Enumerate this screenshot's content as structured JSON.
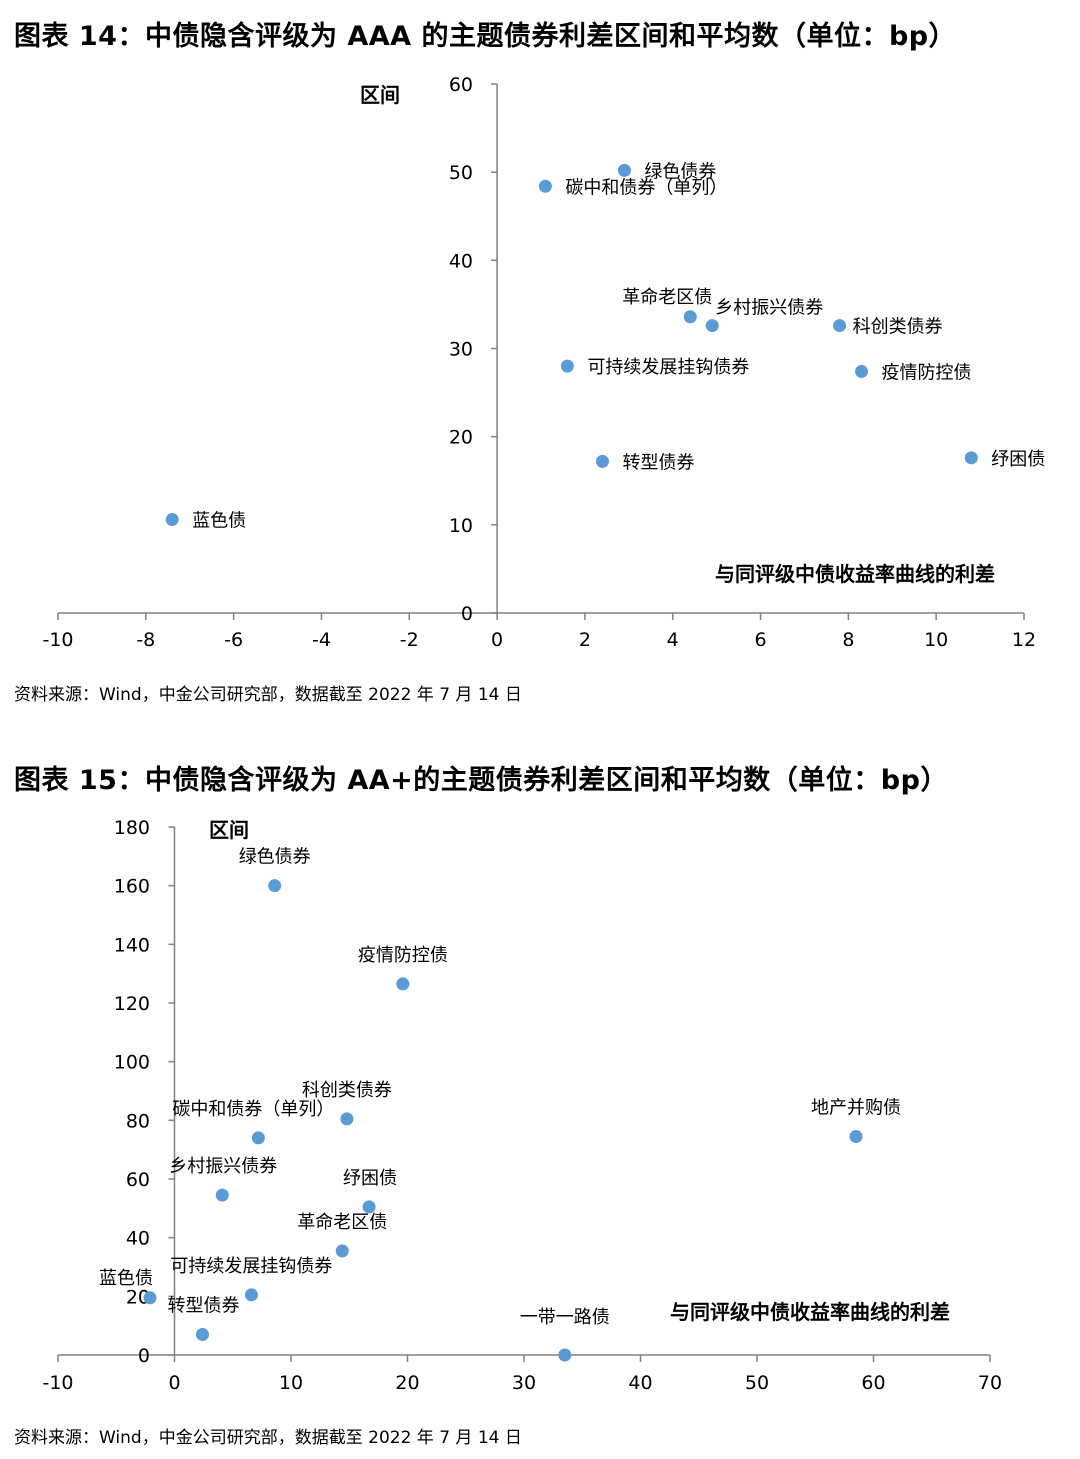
{
  "figure1": {
    "title": "图表 14：中债隐含评级为 AAA 的主题债券利差区间和平均数（单位：bp）",
    "source": "资料来源：Wind，中金公司研究部，数据截至 2022 年 7 月 14 日"
  },
  "figure2": {
    "title": "图表 15：中债隐含评级为 AA+的主题债券利差区间和平均数（单位：bp）",
    "source": "资料来源：Wind，中金公司研究部，数据截至 2022 年 7 月 14 日"
  },
  "chart_data": [
    {
      "type": "scatter",
      "title": "图表 14：中债隐含评级为 AAA 的主题债券利差区间和平均数（单位：bp）",
      "xlabel": "与同评级中债收益率曲线的利差",
      "ylabel": "区间",
      "xlim": [
        -10,
        12
      ],
      "ylim": [
        0,
        60
      ],
      "xticks": [
        "-10",
        "-8",
        "-6",
        "-4",
        "-2",
        "0",
        "2",
        "4",
        "6",
        "8",
        "10",
        "12"
      ],
      "yticks": [
        "0",
        "10",
        "20",
        "30",
        "40",
        "50",
        "60"
      ],
      "grid": false,
      "color": "#5b9bd5",
      "points": [
        {
          "label": "绿色债券",
          "x": 2.9,
          "y": 50.2
        },
        {
          "label": "碳中和债券（单列）",
          "x": 1.1,
          "y": 48.4
        },
        {
          "label": "革命老区债",
          "x": 4.4,
          "y": 33.6
        },
        {
          "label": "乡村振兴债券",
          "x": 4.9,
          "y": 32.6
        },
        {
          "label": "科创类债券",
          "x": 7.8,
          "y": 32.6
        },
        {
          "label": "可持续发展挂钩债券",
          "x": 1.6,
          "y": 28.0
        },
        {
          "label": "疫情防控债",
          "x": 8.3,
          "y": 27.4
        },
        {
          "label": "转型债券",
          "x": 2.4,
          "y": 17.2
        },
        {
          "label": "纾困债",
          "x": 10.8,
          "y": 17.6
        },
        {
          "label": "蓝色债",
          "x": -7.4,
          "y": 10.6
        }
      ]
    },
    {
      "type": "scatter",
      "title": "图表 15：中债隐含评级为 AA+的主题债券利差区间和平均数（单位：bp）",
      "xlabel": "与同评级中债收益率曲线的利差",
      "ylabel": "区间",
      "xlim": [
        -10,
        70
      ],
      "ylim": [
        0,
        180
      ],
      "xticks": [
        "-10",
        "0",
        "10",
        "20",
        "30",
        "40",
        "50",
        "60",
        "70"
      ],
      "yticks": [
        "0",
        "20",
        "40",
        "60",
        "80",
        "100",
        "120",
        "140",
        "160",
        "180"
      ],
      "grid": false,
      "color": "#5b9bd5",
      "points": [
        {
          "label": "绿色债券",
          "x": 8.6,
          "y": 160
        },
        {
          "label": "疫情防控债",
          "x": 19.6,
          "y": 126.5
        },
        {
          "label": "科创类债券",
          "x": 14.8,
          "y": 80.5
        },
        {
          "label": "碳中和债券（单列）",
          "x": 7.2,
          "y": 74
        },
        {
          "label": "地产并购债",
          "x": 58.5,
          "y": 74.5
        },
        {
          "label": "乡村振兴债券",
          "x": 4.1,
          "y": 54.5
        },
        {
          "label": "纾困债",
          "x": 16.7,
          "y": 50.5
        },
        {
          "label": "革命老区债",
          "x": 14.4,
          "y": 35.5
        },
        {
          "label": "可持续发展挂钩债券",
          "x": 6.6,
          "y": 20.5
        },
        {
          "label": "蓝色债",
          "x": -2.1,
          "y": 19.5
        },
        {
          "label": "转型债券",
          "x": 2.4,
          "y": 7
        },
        {
          "label": "一带一路债",
          "x": 33.5,
          "y": 0
        }
      ]
    }
  ]
}
